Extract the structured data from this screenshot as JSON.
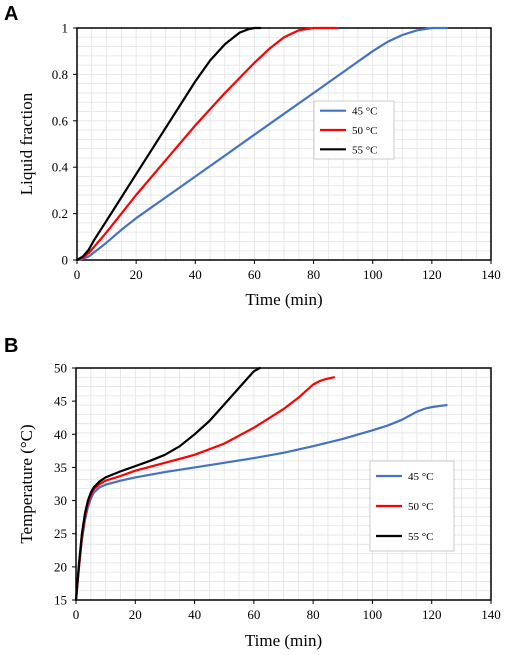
{
  "chart_data": [
    {
      "panel": "A",
      "type": "line",
      "xlabel": "Time (min)",
      "ylabel": "Liquid fraction",
      "xlim": [
        0,
        140
      ],
      "ylim": [
        0,
        1
      ],
      "xticks": [
        0,
        20,
        40,
        60,
        80,
        100,
        120,
        140
      ],
      "yticks": [
        0,
        0.2,
        0.4,
        0.6,
        0.8,
        1
      ],
      "grid": true,
      "legend_position": "middle-right",
      "series": [
        {
          "name": "45 °C",
          "color": "#4472C4",
          "x": [
            0,
            2,
            4,
            6,
            8,
            10,
            15,
            20,
            30,
            40,
            50,
            60,
            70,
            80,
            90,
            100,
            105,
            110,
            115,
            120,
            125
          ],
          "y": [
            0,
            0.005,
            0.015,
            0.035,
            0.055,
            0.075,
            0.13,
            0.18,
            0.27,
            0.36,
            0.45,
            0.54,
            0.63,
            0.72,
            0.81,
            0.9,
            0.94,
            0.97,
            0.99,
            1.0,
            1.0
          ]
        },
        {
          "name": "50 °C",
          "color": "#FF0000",
          "x": [
            0,
            2,
            4,
            6,
            8,
            10,
            15,
            20,
            30,
            40,
            50,
            60,
            65,
            70,
            75,
            80,
            85,
            88
          ],
          "y": [
            0,
            0.01,
            0.03,
            0.06,
            0.09,
            0.12,
            0.2,
            0.28,
            0.43,
            0.58,
            0.72,
            0.85,
            0.91,
            0.96,
            0.99,
            1.0,
            1.0,
            1.0
          ]
        },
        {
          "name": "55 °C",
          "color": "#000000",
          "x": [
            0,
            2,
            4,
            6,
            8,
            10,
            15,
            20,
            30,
            40,
            45,
            50,
            55,
            58,
            60,
            62
          ],
          "y": [
            0,
            0.015,
            0.045,
            0.09,
            0.13,
            0.17,
            0.27,
            0.37,
            0.57,
            0.77,
            0.86,
            0.93,
            0.98,
            0.995,
            1.0,
            1.0
          ]
        }
      ]
    },
    {
      "panel": "B",
      "type": "line",
      "xlabel": "Time (min)",
      "ylabel": "Temperature (°C)",
      "xlim": [
        0,
        140
      ],
      "ylim": [
        15,
        50
      ],
      "xticks": [
        0,
        20,
        40,
        60,
        80,
        100,
        120,
        140
      ],
      "yticks": [
        15,
        20,
        25,
        30,
        35,
        40,
        45,
        50
      ],
      "grid": true,
      "legend_position": "middle-right",
      "series": [
        {
          "name": "45 °C",
          "color": "#4472C4",
          "x": [
            0,
            1,
            2,
            3,
            4,
            5,
            6,
            8,
            10,
            15,
            20,
            30,
            40,
            50,
            60,
            70,
            80,
            90,
            100,
            105,
            110,
            115,
            118,
            120,
            123,
            125
          ],
          "y": [
            15,
            20,
            24,
            27,
            29,
            30.3,
            31.2,
            32,
            32.4,
            33,
            33.5,
            34.3,
            35,
            35.7,
            36.4,
            37.2,
            38.2,
            39.3,
            40.6,
            41.3,
            42.2,
            43.4,
            43.9,
            44.1,
            44.3,
            44.4
          ]
        },
        {
          "name": "50 °C",
          "color": "#FF0000",
          "x": [
            0,
            1,
            2,
            3,
            4,
            5,
            6,
            8,
            10,
            15,
            20,
            30,
            40,
            50,
            60,
            70,
            75,
            80,
            82,
            84,
            86,
            87
          ],
          "y": [
            15,
            20,
            24.5,
            27.5,
            29.5,
            30.8,
            31.7,
            32.5,
            33,
            33.7,
            34.5,
            35.7,
            36.9,
            38.6,
            41,
            43.8,
            45.5,
            47.5,
            48,
            48.3,
            48.5,
            48.6
          ]
        },
        {
          "name": "55 °C",
          "color": "#000000",
          "x": [
            0,
            1,
            2,
            3,
            4,
            5,
            6,
            8,
            10,
            15,
            20,
            25,
            30,
            35,
            40,
            45,
            50,
            55,
            58,
            60,
            62
          ],
          "y": [
            15,
            20.5,
            25,
            28,
            30,
            31.2,
            32,
            32.9,
            33.5,
            34.4,
            35.2,
            36,
            36.9,
            38.2,
            40,
            42,
            44.5,
            47,
            48.5,
            49.5,
            50
          ]
        }
      ]
    }
  ]
}
